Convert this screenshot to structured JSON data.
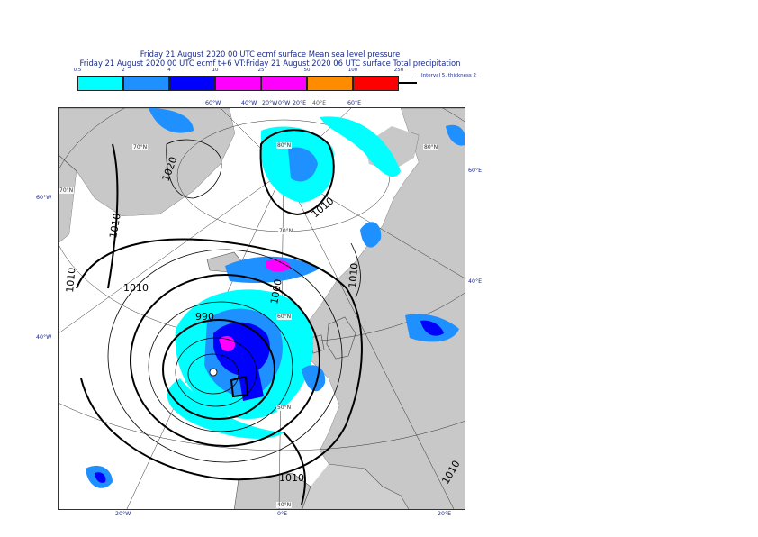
{
  "title_line1": "Friday 21 August 2020 00 UTC ecmf surface  Mean sea level pressure",
  "title_line2": "Friday 21 August 2020 00 UTC ecmf t+6 VT:Friday 21 August 2020 06 UTC surface  Total precipitation",
  "legend": {
    "ticks": [
      "0.5",
      "2",
      "4",
      "10",
      "25",
      "50",
      "100",
      "250"
    ],
    "colors": [
      "#00ffff",
      "#1e90ff",
      "#0000ff",
      "#ff00ff",
      "#ff00ff",
      "#ff8c00",
      "#ff0000"
    ],
    "note": "Interval 5, thickness 2"
  },
  "map": {
    "land_color": "#c8c8c8",
    "sea_color": "#ffffff",
    "top_labels": [
      "60°W",
      "40°W",
      "20°W",
      "0°W",
      "20°E",
      "40°E",
      "60°E"
    ],
    "right_labels": [
      "60°E",
      "40°E"
    ],
    "left_labels": [
      "60°W",
      "40°W"
    ],
    "bottom_labels": [
      "20°W",
      "0°E",
      "20°E"
    ],
    "lat_labels": [
      "70°N",
      "80°N",
      "80°N",
      "70°N",
      "70°N",
      "60°N",
      "50°N",
      "40°N"
    ],
    "isobar_labels": [
      "1020",
      "1010",
      "1010",
      "1010",
      "1010",
      "1000",
      "990",
      "1010",
      "1010",
      "1010"
    ]
  }
}
